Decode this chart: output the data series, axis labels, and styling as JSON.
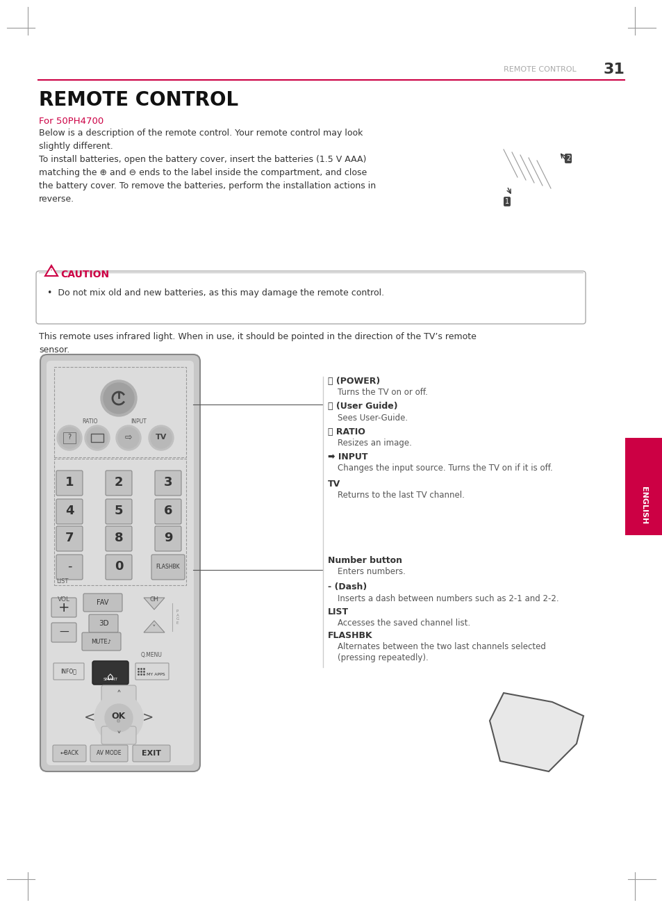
{
  "page_bg": "#ffffff",
  "page_num": "31",
  "header_text": "REMOTE CONTROL",
  "header_line_color": "#cc0044",
  "title": "REMOTE CONTROL",
  "subtitle_color": "#cc0044",
  "subtitle": "For 50PH4700",
  "body_text_color": "#333333",
  "caution_color": "#cc0044",
  "english_tab_color": "#cc0044",
  "english_tab_text": "ENGLISH",
  "remote_body_color": "#c8c8c8",
  "remote_dark_color": "#555555",
  "remote_button_color": "#b0b0b0",
  "remote_button_text_color": "#333333"
}
